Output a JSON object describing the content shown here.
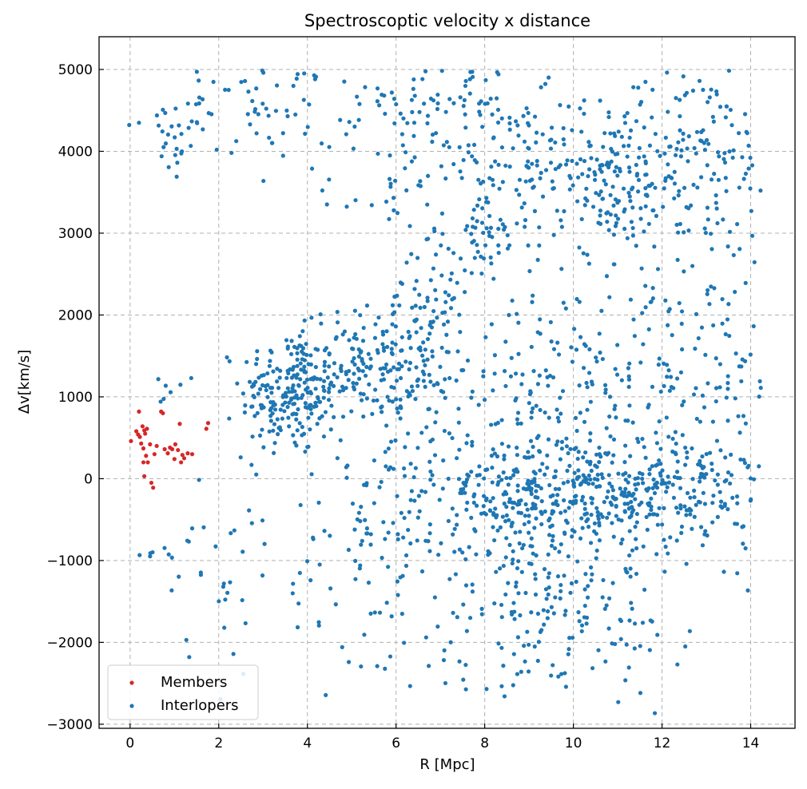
{
  "chart_data": {
    "type": "scatter",
    "title": "Spectroscoptic velocity x distance",
    "xlabel": "R [Mpc]",
    "ylabel": "Δv[km/s]",
    "xlim": [
      -0.7,
      15.0
    ],
    "ylim": [
      -3050,
      5400
    ],
    "x_ticks": [
      "0",
      "2",
      "4",
      "6",
      "8",
      "10",
      "12",
      "14"
    ],
    "y_ticks": [
      "−3000",
      "−2000",
      "−1000",
      "0",
      "1000",
      "2000",
      "3000",
      "4000",
      "5000"
    ],
    "grid": true,
    "legend_position": "lower-left",
    "series": [
      {
        "name": "Members",
        "color": "#d62728",
        "points": [
          [
            0.02,
            460
          ],
          [
            0.14,
            580
          ],
          [
            0.18,
            540
          ],
          [
            0.2,
            820
          ],
          [
            0.22,
            510
          ],
          [
            0.25,
            430
          ],
          [
            0.28,
            640
          ],
          [
            0.3,
            370
          ],
          [
            0.32,
            590
          ],
          [
            0.3,
            200
          ],
          [
            0.34,
            550
          ],
          [
            0.36,
            280
          ],
          [
            0.38,
            610
          ],
          [
            0.4,
            200
          ],
          [
            0.45,
            420
          ],
          [
            0.48,
            -50
          ],
          [
            0.52,
            -110
          ],
          [
            0.55,
            300
          ],
          [
            0.6,
            400
          ],
          [
            0.7,
            820
          ],
          [
            0.74,
            800
          ],
          [
            0.78,
            360
          ],
          [
            0.85,
            310
          ],
          [
            0.9,
            380
          ],
          [
            0.95,
            360
          ],
          [
            1.0,
            240
          ],
          [
            1.02,
            420
          ],
          [
            1.08,
            350
          ],
          [
            1.12,
            670
          ],
          [
            1.15,
            200
          ],
          [
            1.18,
            290
          ],
          [
            1.22,
            250
          ],
          [
            1.3,
            310
          ],
          [
            1.4,
            300
          ],
          [
            1.72,
            610
          ],
          [
            1.76,
            680
          ],
          [
            0.32,
            30
          ]
        ]
      },
      {
        "name": "Interlopers",
        "color": "#1f77b4",
        "clusters": [
          {
            "cx": 0.9,
            "cy": 4200,
            "sx": 0.5,
            "sy": 300,
            "n": 25
          },
          {
            "cx": 0.8,
            "cy": 1000,
            "sx": 0.3,
            "sy": 150,
            "n": 6
          },
          {
            "cx": 0.8,
            "cy": -900,
            "sx": 0.4,
            "sy": 40,
            "n": 7
          },
          {
            "cx": 3.6,
            "cy": 1050,
            "sx": 0.55,
            "sy": 380,
            "n": 210
          },
          {
            "cx": 5.2,
            "cy": 1350,
            "sx": 0.6,
            "sy": 380,
            "n": 130
          },
          {
            "cx": 6.3,
            "cy": 1500,
            "sx": 0.5,
            "sy": 450,
            "n": 70
          },
          {
            "cx": 7.1,
            "cy": 2000,
            "sx": 0.6,
            "sy": 500,
            "n": 50
          },
          {
            "cx": 3.0,
            "cy": 4600,
            "sx": 1.1,
            "sy": 350,
            "n": 70
          },
          {
            "cx": 7.0,
            "cy": 4600,
            "sx": 0.9,
            "sy": 250,
            "n": 70
          },
          {
            "cx": 6.0,
            "cy": 3600,
            "sx": 0.8,
            "sy": 300,
            "n": 40
          },
          {
            "cx": 8.0,
            "cy": 2900,
            "sx": 0.4,
            "sy": 300,
            "n": 40
          },
          {
            "cx": 8.6,
            "cy": 3800,
            "sx": 0.9,
            "sy": 450,
            "n": 90
          },
          {
            "cx": 10.8,
            "cy": 3750,
            "sx": 0.8,
            "sy": 450,
            "n": 140
          },
          {
            "cx": 12.6,
            "cy": 4000,
            "sx": 1.0,
            "sy": 550,
            "n": 130
          },
          {
            "cx": 11.5,
            "cy": 2500,
            "sx": 1.6,
            "sy": 500,
            "n": 70
          },
          {
            "cx": 9.5,
            "cy": 1200,
            "sx": 1.5,
            "sy": 450,
            "n": 140
          },
          {
            "cx": 12.8,
            "cy": 1100,
            "sx": 1.0,
            "sy": 500,
            "n": 70
          },
          {
            "cx": 8.6,
            "cy": -200,
            "sx": 0.8,
            "sy": 400,
            "n": 180
          },
          {
            "cx": 10.6,
            "cy": -200,
            "sx": 1.0,
            "sy": 380,
            "n": 230
          },
          {
            "cx": 12.4,
            "cy": -150,
            "sx": 1.0,
            "sy": 380,
            "n": 160
          },
          {
            "cx": 6.6,
            "cy": -200,
            "sx": 0.9,
            "sy": 600,
            "n": 90
          },
          {
            "cx": 9.5,
            "cy": -1600,
            "sx": 1.6,
            "sy": 400,
            "n": 140
          },
          {
            "cx": 5.0,
            "cy": -900,
            "sx": 2.2,
            "sy": 600,
            "n": 80
          },
          {
            "cx": 8.0,
            "cy": -2400,
            "sx": 3.5,
            "sy": 250,
            "n": 30
          },
          {
            "cx": 13.7,
            "cy": 2600,
            "sx": 0.4,
            "sy": 1500,
            "n": 35
          },
          {
            "cx": 1.9,
            "cy": -1600,
            "sx": 0.3,
            "sy": 500,
            "n": 12
          }
        ]
      }
    ]
  }
}
